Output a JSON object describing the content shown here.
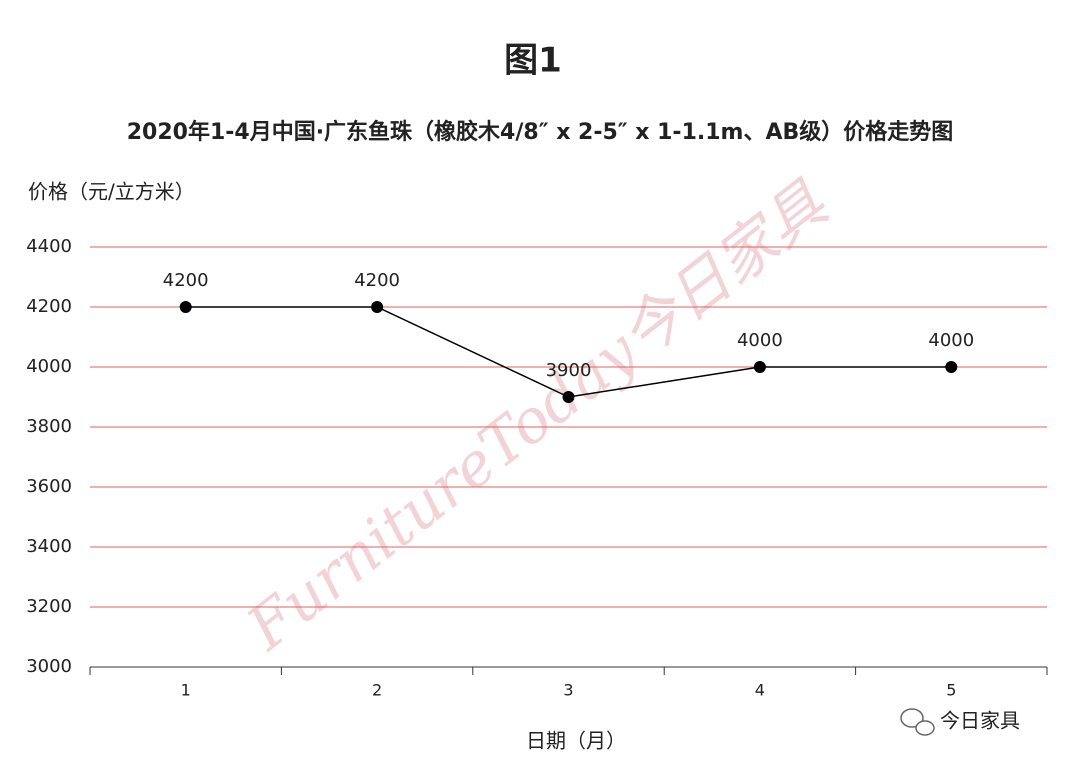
{
  "chart_data": {
    "type": "line",
    "title": "图1",
    "subtitle": "2020年1-4月中国·广东鱼珠（橡胶木4/8″ x 2-5″ x 1-1.1m、AB级）价格走势图",
    "ylabel": "价格（元/立方米）",
    "xlabel": "日期（月）",
    "categories": [
      "1",
      "2",
      "3",
      "4",
      "5"
    ],
    "values": [
      4200,
      4200,
      3900,
      4000,
      4000
    ],
    "color": "#000000",
    "grid_color": "#e06060",
    "ylim": [
      3000,
      4400
    ],
    "yticks": [
      3000,
      3200,
      3400,
      3600,
      3800,
      4000,
      4200,
      4400
    ],
    "grid": true
  },
  "watermark": "FurnitureToday今日家具",
  "footer_logo": "今日家具"
}
